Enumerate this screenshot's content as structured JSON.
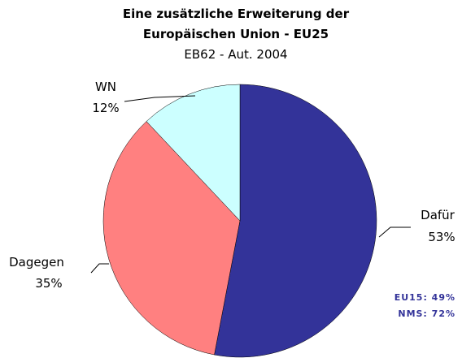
{
  "chart_data": {
    "type": "pie",
    "title": [
      "Eine zusätzliche Erweiterung der",
      "Europäischen Union - EU25"
    ],
    "subtitle": "EB62 - Aut. 2004",
    "categories": [
      "Dafür",
      "Dagegen",
      "WN"
    ],
    "values": [
      53,
      35,
      12
    ],
    "value_labels": [
      "53%",
      "35%",
      "12%"
    ],
    "colors": [
      "#333399",
      "#ff8080",
      "#ccffff"
    ],
    "annotations": [
      "EU15: 49%",
      "NMS: 72%"
    ]
  }
}
